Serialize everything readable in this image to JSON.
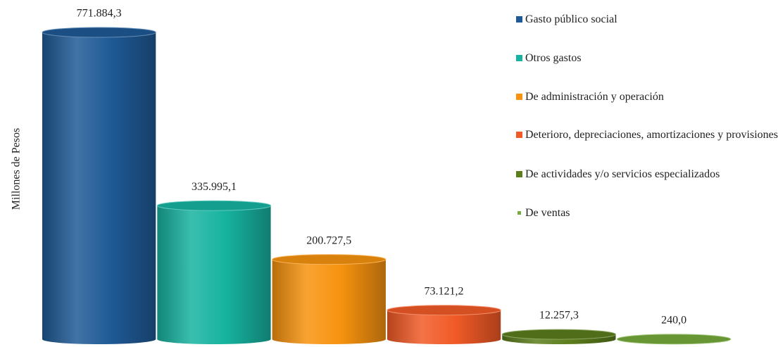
{
  "chart_data": {
    "type": "bar",
    "ylabel": "Millones de Pesos",
    "categories": [
      "Gasto público social",
      "Otros gastos",
      "De administración y operación",
      "Deterioro, depreciaciones, amortizaciones y provisiones",
      "De actividades y/o servicios especializados",
      "De ventas"
    ],
    "values": [
      771884.3,
      335995.1,
      200727.5,
      73121.2,
      12257.3,
      240.0
    ],
    "value_labels": [
      "771.884,3",
      "335.995,1",
      "200.727,5",
      "73.121,2",
      "12.257,3",
      "240,0"
    ],
    "colors": [
      "#1f5a96",
      "#17b3a0",
      "#f7930f",
      "#f15a27",
      "#5b7d1c",
      "#76ab3c"
    ],
    "legend": "upper right"
  }
}
